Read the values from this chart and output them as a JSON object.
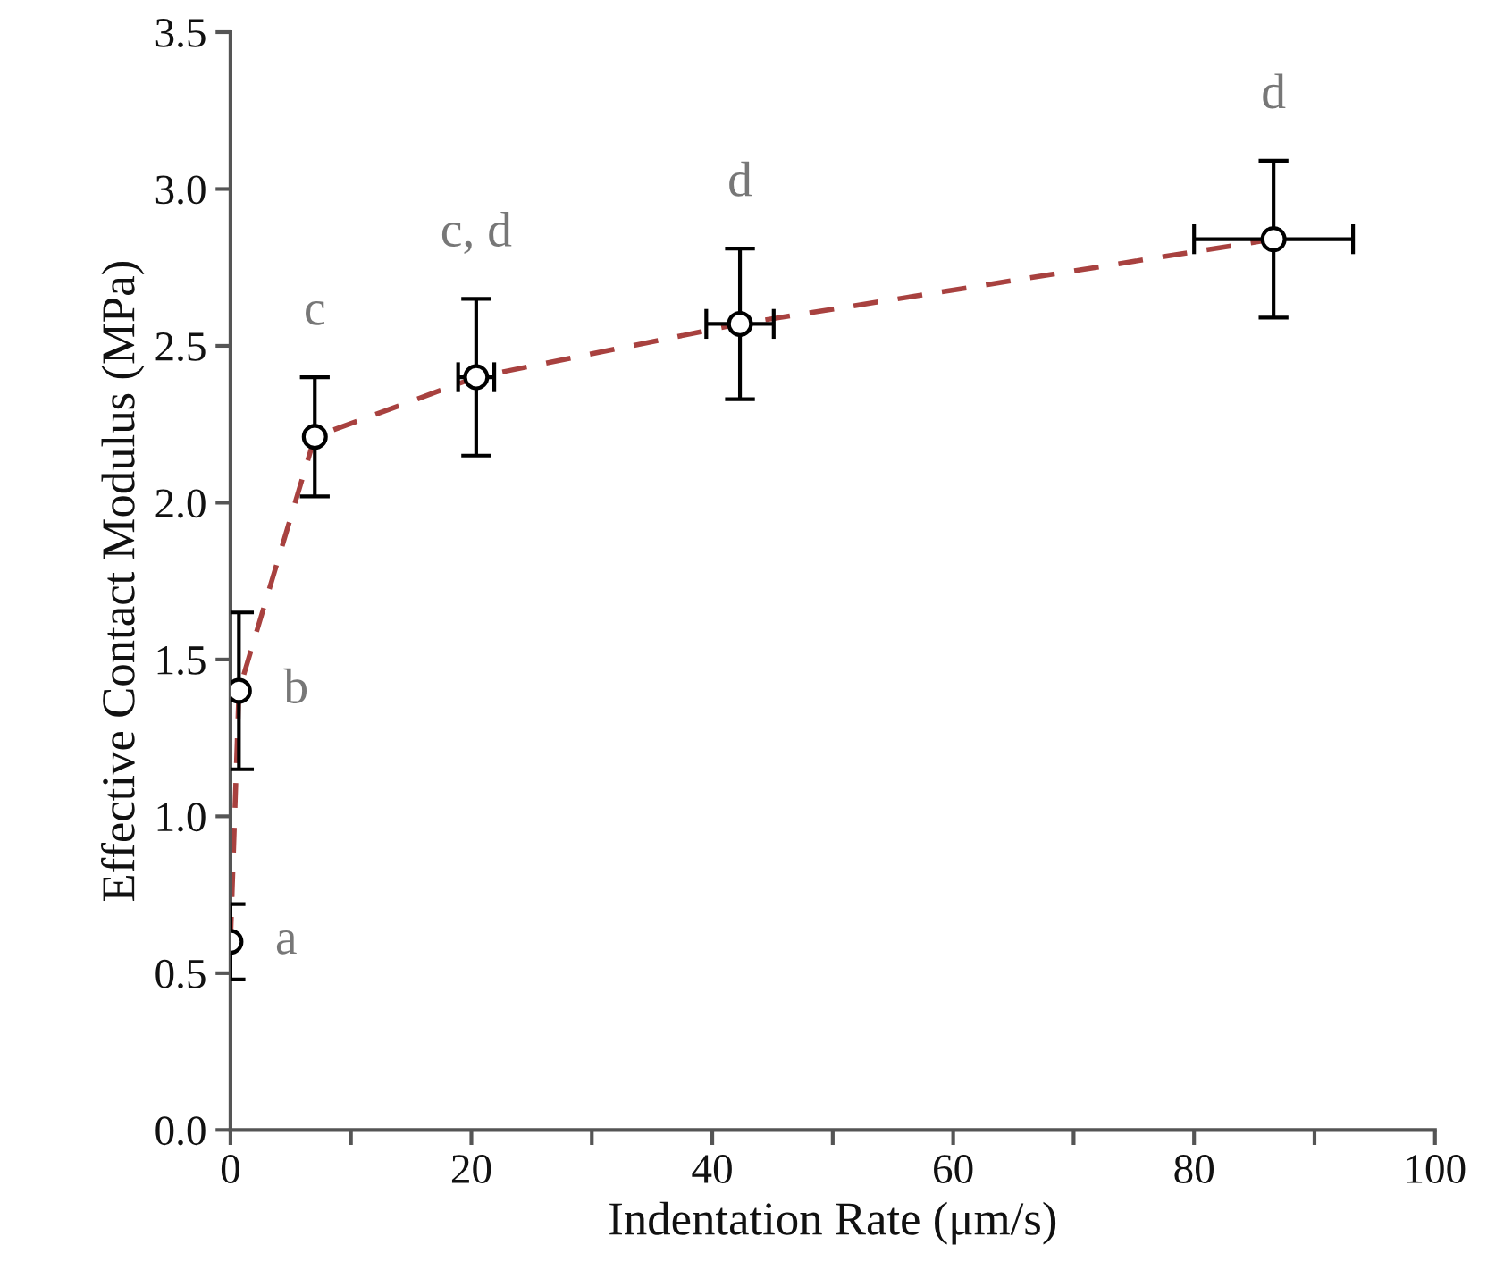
{
  "chart_data": {
    "type": "scatter",
    "xlabel": "Indentation Rate (μm/s)",
    "ylabel": "Effective Contact Modulus (MPa)",
    "x": [
      0.0,
      0.7,
      7.0,
      20.4,
      42.3,
      86.6
    ],
    "series": [
      {
        "type": "line",
        "color": "#a8413f",
        "line_style": "dashed",
        "marker": "none",
        "values": [
          0.6,
          1.4,
          2.21,
          2.4,
          2.57,
          2.84
        ]
      },
      {
        "color": "#000000",
        "marker": "circle",
        "values": [
          0.6,
          1.4,
          2.21,
          2.4,
          2.57,
          2.84
        ],
        "errors": [
          0.12,
          0.25,
          0.19,
          0.25,
          0.24,
          0.25
        ],
        "xerrors": [
          null,
          null,
          null,
          1.5,
          2.8,
          6.6
        ]
      }
    ],
    "xlim": [
      0,
      100
    ],
    "ylim": [
      0,
      3.5
    ],
    "xticks": [
      0,
      {
        "value": 10,
        "label": null
      },
      20,
      {
        "value": 30,
        "label": null
      },
      40,
      {
        "value": 50,
        "label": null
      },
      60,
      {
        "value": 70,
        "label": null
      },
      80,
      {
        "value": 90,
        "label": null
      },
      100
    ],
    "yticks": [
      {
        "value": 0,
        "label": "0.0"
      },
      0.5,
      {
        "value": 1,
        "label": "1.0"
      },
      1.5,
      {
        "value": 2,
        "label": "2.0"
      },
      2.5,
      {
        "value": 3,
        "label": "3.0"
      },
      3.5
    ],
    "grid": false,
    "legend": false,
    "annotations": [
      {
        "text": "a",
        "x": 0.0,
        "y": 0.6
      },
      {
        "text": "b",
        "x": 0.7,
        "y": 1.4
      },
      {
        "text": "c",
        "x": 7.0,
        "y": 2.21
      },
      {
        "text": "c, d",
        "x": 20.4,
        "y": 2.4
      },
      {
        "text": "d",
        "x": 42.3,
        "y": 2.57
      },
      {
        "text": "d",
        "x": 86.6,
        "y": 2.84
      }
    ]
  }
}
